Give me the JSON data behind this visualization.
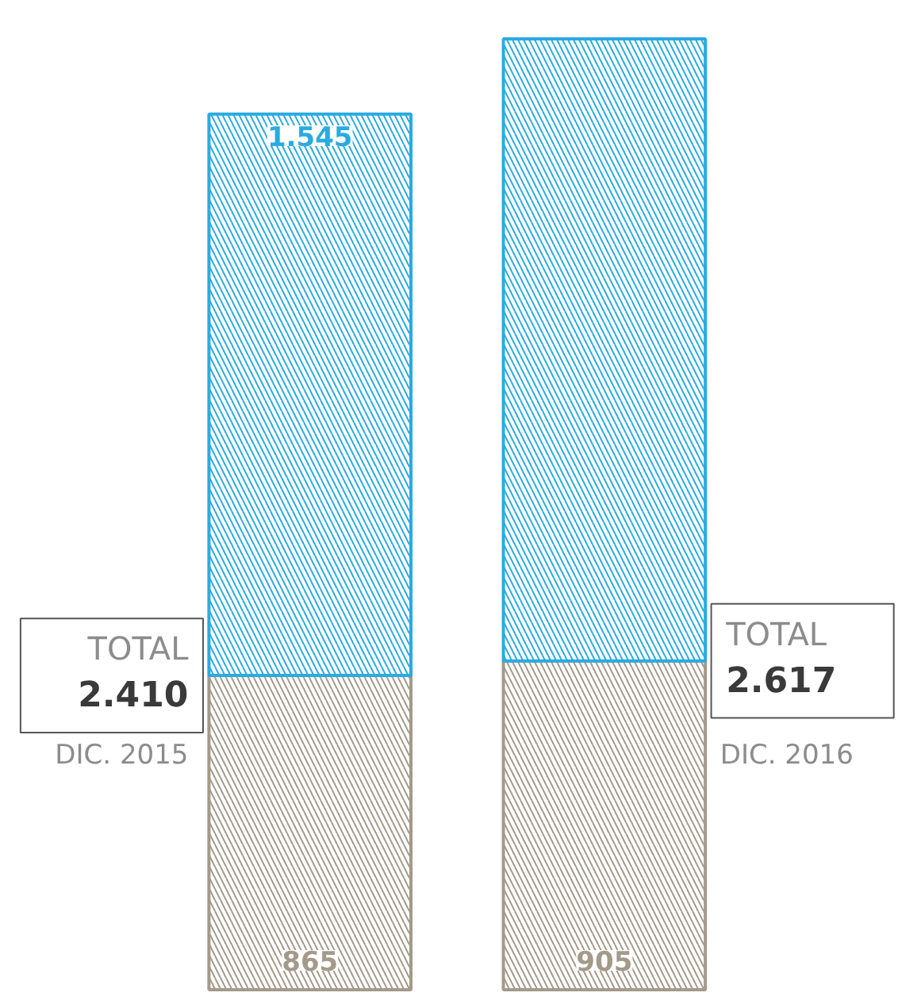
{
  "chart_data": {
    "type": "bar",
    "stacked": true,
    "categories": [
      "DIC. 2015",
      "DIC. 2016"
    ],
    "series": [
      {
        "color": "#a39a8a",
        "values": [
          865,
          905
        ],
        "value_labels": [
          "865",
          "905"
        ]
      },
      {
        "color": "#29abe2",
        "values": [
          1545,
          1712
        ],
        "value_labels": [
          "1.545",
          null
        ]
      }
    ],
    "totals": [
      "2.410",
      "2.617"
    ],
    "annotations": [
      "TOTAL",
      "TOTAL"
    ],
    "grid": false
  }
}
